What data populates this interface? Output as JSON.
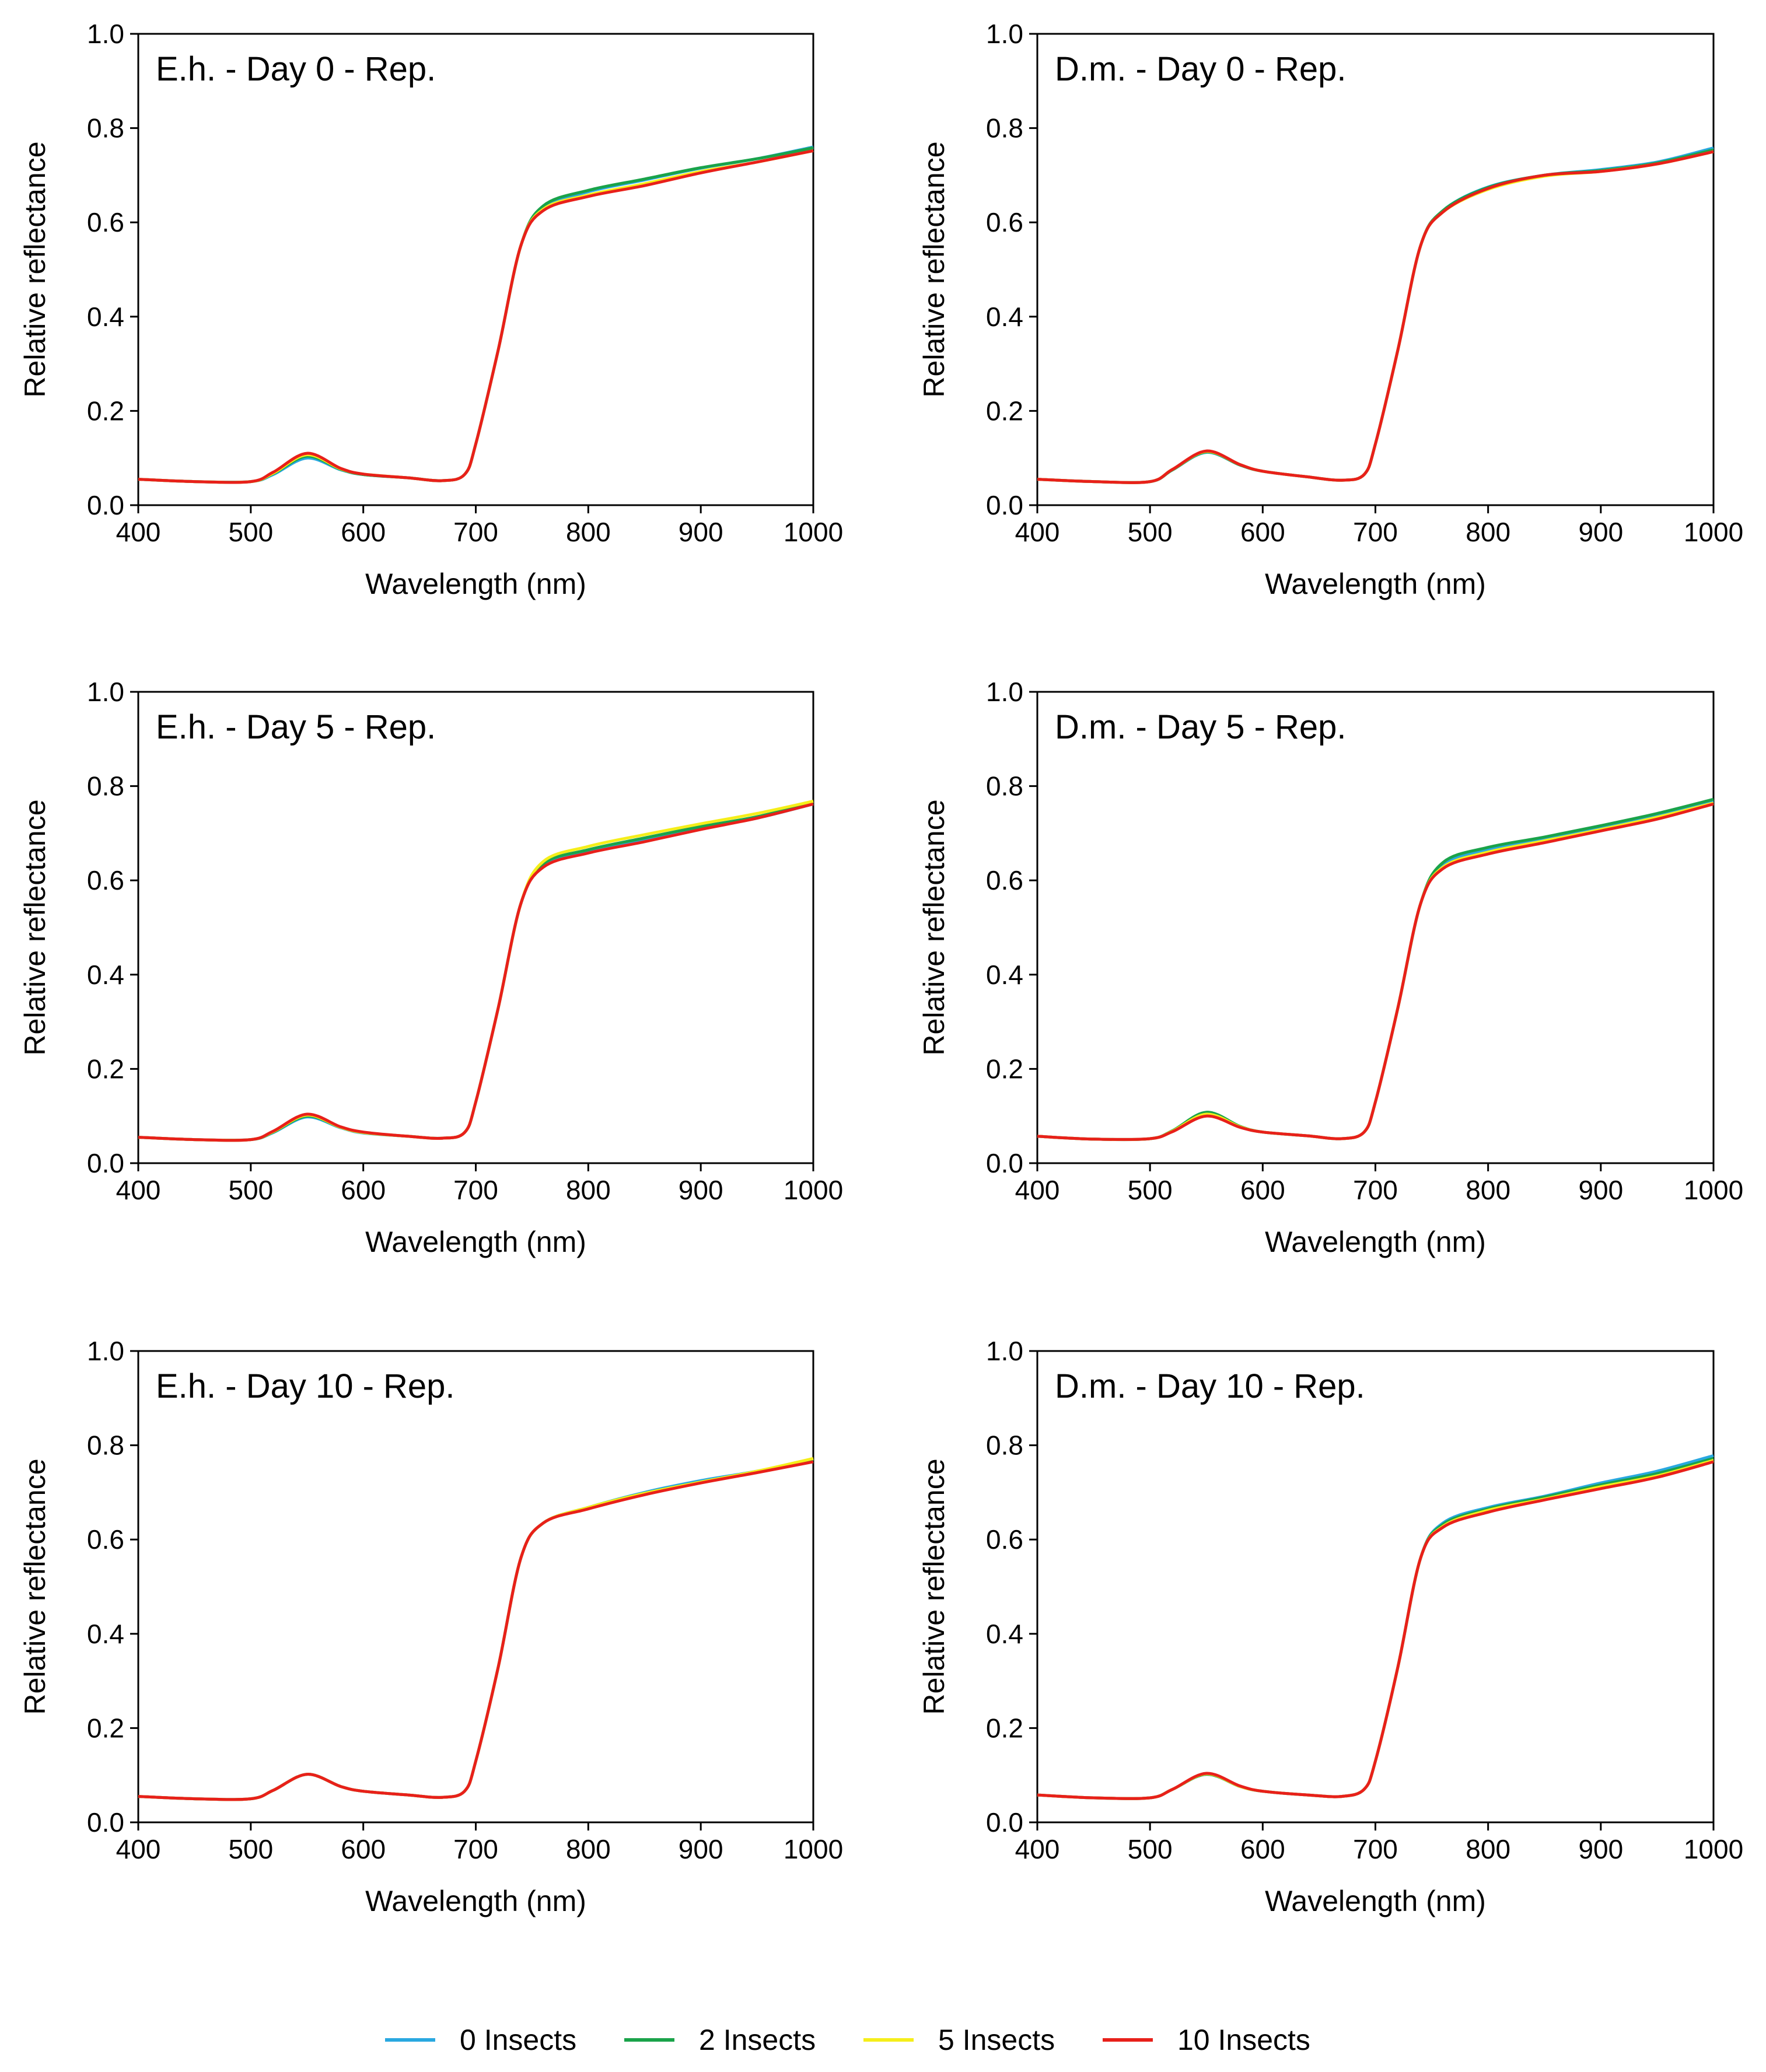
{
  "figure": {
    "legend": [
      {
        "label": "0 Insects",
        "color": "#29a8e0"
      },
      {
        "label": "2 Insects",
        "color": "#1aa34a"
      },
      {
        "label": "5 Insects",
        "color": "#f5ee1a"
      },
      {
        "label": "10 Insects",
        "color": "#e8201a"
      }
    ]
  },
  "chart_data": [
    {
      "type": "line",
      "title": "E.h. - Day 0 - Rep.",
      "xlabel": "Wavelength (nm)",
      "ylabel": "Relative reflectance",
      "xlim": [
        400,
        1000
      ],
      "ylim": [
        0,
        1.0
      ],
      "xticks": [
        "400",
        "500",
        "600",
        "700",
        "800",
        "900",
        "1000"
      ],
      "yticks": [
        "0.0",
        "0.2",
        "0.4",
        "0.6",
        "0.8",
        "1.0"
      ],
      "x": [
        400,
        450,
        500,
        520,
        550,
        580,
        600,
        640,
        670,
        690,
        700,
        720,
        740,
        760,
        800,
        850,
        900,
        950,
        1000
      ],
      "series": [
        {
          "name": "0 Insects",
          "color": "#29a8e0",
          "values": [
            0.055,
            0.05,
            0.05,
            0.065,
            0.1,
            0.075,
            0.065,
            0.058,
            0.052,
            0.065,
            0.13,
            0.33,
            0.55,
            0.63,
            0.665,
            0.69,
            0.715,
            0.735,
            0.76
          ]
        },
        {
          "name": "2 Insects",
          "color": "#1aa34a",
          "values": [
            0.055,
            0.05,
            0.05,
            0.067,
            0.104,
            0.076,
            0.065,
            0.058,
            0.052,
            0.065,
            0.13,
            0.33,
            0.55,
            0.635,
            0.668,
            0.692,
            0.716,
            0.735,
            0.758
          ]
        },
        {
          "name": "5 Insects",
          "color": "#f5ee1a",
          "values": [
            0.055,
            0.05,
            0.05,
            0.068,
            0.107,
            0.077,
            0.066,
            0.058,
            0.052,
            0.065,
            0.13,
            0.33,
            0.55,
            0.628,
            0.658,
            0.682,
            0.708,
            0.728,
            0.752
          ]
        },
        {
          "name": "10 Insects",
          "color": "#e8201a",
          "values": [
            0.055,
            0.05,
            0.05,
            0.07,
            0.11,
            0.078,
            0.066,
            0.058,
            0.052,
            0.065,
            0.13,
            0.33,
            0.55,
            0.625,
            0.655,
            0.678,
            0.705,
            0.728,
            0.752
          ]
        }
      ]
    },
    {
      "type": "line",
      "title": "D.m. - Day 0 - Rep.",
      "xlabel": "Wavelength (nm)",
      "ylabel": "Relative reflectance",
      "xlim": [
        400,
        1000
      ],
      "ylim": [
        0,
        1.0
      ],
      "xticks": [
        "400",
        "500",
        "600",
        "700",
        "800",
        "900",
        "1000"
      ],
      "yticks": [
        "0.0",
        "0.2",
        "0.4",
        "0.6",
        "0.8",
        "1.0"
      ],
      "x": [
        400,
        450,
        500,
        520,
        550,
        580,
        600,
        640,
        670,
        690,
        700,
        720,
        740,
        760,
        800,
        850,
        900,
        950,
        1000
      ],
      "series": [
        {
          "name": "0 Insects",
          "color": "#29a8e0",
          "values": [
            0.055,
            0.05,
            0.05,
            0.075,
            0.112,
            0.085,
            0.072,
            0.06,
            0.053,
            0.065,
            0.13,
            0.33,
            0.55,
            0.625,
            0.675,
            0.7,
            0.712,
            0.728,
            0.758
          ]
        },
        {
          "name": "2 Insects",
          "color": "#1aa34a",
          "values": [
            0.055,
            0.05,
            0.05,
            0.075,
            0.113,
            0.085,
            0.072,
            0.06,
            0.053,
            0.065,
            0.13,
            0.33,
            0.55,
            0.625,
            0.674,
            0.7,
            0.71,
            0.726,
            0.754
          ]
        },
        {
          "name": "5 Insects",
          "color": "#f5ee1a",
          "values": [
            0.055,
            0.05,
            0.05,
            0.076,
            0.114,
            0.086,
            0.072,
            0.06,
            0.053,
            0.065,
            0.13,
            0.33,
            0.55,
            0.622,
            0.67,
            0.698,
            0.708,
            0.724,
            0.75
          ]
        },
        {
          "name": "10 Insects",
          "color": "#e8201a",
          "values": [
            0.055,
            0.05,
            0.05,
            0.076,
            0.115,
            0.086,
            0.072,
            0.06,
            0.053,
            0.065,
            0.13,
            0.33,
            0.55,
            0.622,
            0.672,
            0.7,
            0.708,
            0.724,
            0.75
          ]
        }
      ]
    },
    {
      "type": "line",
      "title": "E.h. - Day 5 - Rep.",
      "xlabel": "Wavelength (nm)",
      "ylabel": "Relative reflectance",
      "xlim": [
        400,
        1000
      ],
      "ylim": [
        0,
        1.0
      ],
      "xticks": [
        "400",
        "500",
        "600",
        "700",
        "800",
        "900",
        "1000"
      ],
      "yticks": [
        "0.0",
        "0.2",
        "0.4",
        "0.6",
        "0.8",
        "1.0"
      ],
      "x": [
        400,
        450,
        500,
        520,
        550,
        580,
        600,
        640,
        670,
        690,
        700,
        720,
        740,
        760,
        800,
        850,
        900,
        950,
        1000
      ],
      "series": [
        {
          "name": "0 Insects",
          "color": "#29a8e0",
          "values": [
            0.055,
            0.05,
            0.05,
            0.065,
            0.098,
            0.075,
            0.064,
            0.057,
            0.053,
            0.065,
            0.13,
            0.33,
            0.55,
            0.63,
            0.66,
            0.685,
            0.71,
            0.732,
            0.762
          ]
        },
        {
          "name": "2 Insects",
          "color": "#1aa34a",
          "values": [
            0.055,
            0.05,
            0.05,
            0.066,
            0.1,
            0.076,
            0.065,
            0.057,
            0.053,
            0.065,
            0.13,
            0.33,
            0.55,
            0.635,
            0.665,
            0.69,
            0.714,
            0.735,
            0.765
          ]
        },
        {
          "name": "5 Insects",
          "color": "#f5ee1a",
          "values": [
            0.055,
            0.05,
            0.05,
            0.067,
            0.102,
            0.076,
            0.065,
            0.057,
            0.053,
            0.065,
            0.13,
            0.33,
            0.55,
            0.64,
            0.672,
            0.697,
            0.72,
            0.742,
            0.768
          ]
        },
        {
          "name": "10 Insects",
          "color": "#e8201a",
          "values": [
            0.055,
            0.05,
            0.05,
            0.068,
            0.104,
            0.077,
            0.066,
            0.057,
            0.053,
            0.065,
            0.13,
            0.33,
            0.55,
            0.628,
            0.658,
            0.682,
            0.708,
            0.732,
            0.762
          ]
        }
      ]
    },
    {
      "type": "line",
      "title": "D.m. - Day 5 - Rep.",
      "xlabel": "Wavelength (nm)",
      "ylabel": "Relative reflectance",
      "xlim": [
        400,
        1000
      ],
      "ylim": [
        0,
        1.0
      ],
      "xticks": [
        "400",
        "500",
        "600",
        "700",
        "800",
        "900",
        "1000"
      ],
      "yticks": [
        "0.0",
        "0.2",
        "0.4",
        "0.6",
        "0.8",
        "1.0"
      ],
      "x": [
        400,
        450,
        500,
        520,
        550,
        580,
        600,
        640,
        670,
        690,
        700,
        720,
        740,
        760,
        800,
        850,
        900,
        950,
        1000
      ],
      "series": [
        {
          "name": "0 Insects",
          "color": "#29a8e0",
          "values": [
            0.057,
            0.051,
            0.052,
            0.068,
            0.105,
            0.077,
            0.066,
            0.058,
            0.052,
            0.066,
            0.13,
            0.33,
            0.55,
            0.632,
            0.665,
            0.688,
            0.712,
            0.738,
            0.768
          ]
        },
        {
          "name": "2 Insects",
          "color": "#1aa34a",
          "values": [
            0.057,
            0.051,
            0.052,
            0.069,
            0.108,
            0.078,
            0.066,
            0.058,
            0.052,
            0.066,
            0.13,
            0.33,
            0.55,
            0.638,
            0.67,
            0.692,
            0.716,
            0.742,
            0.772
          ]
        },
        {
          "name": "5 Insects",
          "color": "#f5ee1a",
          "values": [
            0.057,
            0.051,
            0.052,
            0.068,
            0.104,
            0.077,
            0.066,
            0.058,
            0.052,
            0.066,
            0.13,
            0.33,
            0.55,
            0.628,
            0.66,
            0.684,
            0.708,
            0.734,
            0.764
          ]
        },
        {
          "name": "10 Insects",
          "color": "#e8201a",
          "values": [
            0.057,
            0.051,
            0.052,
            0.067,
            0.1,
            0.076,
            0.066,
            0.058,
            0.052,
            0.066,
            0.13,
            0.33,
            0.55,
            0.625,
            0.656,
            0.68,
            0.705,
            0.73,
            0.762
          ]
        }
      ]
    },
    {
      "type": "line",
      "title": "E.h. - Day 10 - Rep.",
      "xlabel": "Wavelength (nm)",
      "ylabel": "Relative reflectance",
      "xlim": [
        400,
        1000
      ],
      "ylim": [
        0,
        1.0
      ],
      "xticks": [
        "400",
        "500",
        "600",
        "700",
        "800",
        "900",
        "1000"
      ],
      "yticks": [
        "0.0",
        "0.2",
        "0.4",
        "0.6",
        "0.8",
        "1.0"
      ],
      "x": [
        400,
        450,
        500,
        520,
        550,
        580,
        600,
        640,
        670,
        690,
        700,
        720,
        740,
        760,
        800,
        850,
        900,
        950,
        1000
      ],
      "series": [
        {
          "name": "0 Insects",
          "color": "#29a8e0",
          "values": [
            0.055,
            0.05,
            0.05,
            0.068,
            0.102,
            0.076,
            0.066,
            0.058,
            0.053,
            0.066,
            0.13,
            0.33,
            0.56,
            0.635,
            0.668,
            0.7,
            0.725,
            0.745,
            0.77
          ]
        },
        {
          "name": "2 Insects",
          "color": "#1aa34a",
          "values": [
            0.055,
            0.05,
            0.05,
            0.068,
            0.102,
            0.076,
            0.066,
            0.058,
            0.053,
            0.066,
            0.13,
            0.33,
            0.56,
            0.635,
            0.668,
            0.698,
            0.722,
            0.743,
            0.77
          ]
        },
        {
          "name": "5 Insects",
          "color": "#f5ee1a",
          "values": [
            0.055,
            0.05,
            0.05,
            0.068,
            0.102,
            0.076,
            0.066,
            0.058,
            0.053,
            0.066,
            0.13,
            0.33,
            0.56,
            0.635,
            0.668,
            0.698,
            0.722,
            0.745,
            0.772
          ]
        },
        {
          "name": "10 Insects",
          "color": "#e8201a",
          "values": [
            0.055,
            0.05,
            0.05,
            0.068,
            0.102,
            0.076,
            0.066,
            0.058,
            0.053,
            0.066,
            0.13,
            0.33,
            0.56,
            0.635,
            0.665,
            0.695,
            0.72,
            0.742,
            0.765
          ]
        }
      ]
    },
    {
      "type": "line",
      "title": "D.m. - Day 10 - Rep.",
      "xlabel": "Wavelength (nm)",
      "ylabel": "Relative reflectance",
      "xlim": [
        400,
        1000
      ],
      "ylim": [
        0,
        1.0
      ],
      "xticks": [
        "400",
        "500",
        "600",
        "700",
        "800",
        "900",
        "1000"
      ],
      "yticks": [
        "0.0",
        "0.2",
        "0.4",
        "0.6",
        "0.8",
        "1.0"
      ],
      "x": [
        400,
        450,
        500,
        520,
        550,
        580,
        600,
        640,
        670,
        690,
        700,
        720,
        740,
        760,
        800,
        850,
        900,
        950,
        1000
      ],
      "series": [
        {
          "name": "0 Insects",
          "color": "#29a8e0",
          "values": [
            0.058,
            0.052,
            0.052,
            0.07,
            0.102,
            0.076,
            0.066,
            0.058,
            0.055,
            0.07,
            0.13,
            0.33,
            0.56,
            0.635,
            0.668,
            0.692,
            0.72,
            0.745,
            0.778
          ]
        },
        {
          "name": "2 Insects",
          "color": "#1aa34a",
          "values": [
            0.058,
            0.052,
            0.052,
            0.07,
            0.102,
            0.076,
            0.066,
            0.058,
            0.055,
            0.07,
            0.13,
            0.33,
            0.56,
            0.632,
            0.665,
            0.69,
            0.716,
            0.74,
            0.772
          ]
        },
        {
          "name": "5 Insects",
          "color": "#f5ee1a",
          "values": [
            0.058,
            0.052,
            0.052,
            0.07,
            0.103,
            0.076,
            0.066,
            0.058,
            0.055,
            0.07,
            0.13,
            0.33,
            0.56,
            0.628,
            0.662,
            0.686,
            0.712,
            0.735,
            0.768
          ]
        },
        {
          "name": "10 Insects",
          "color": "#e8201a",
          "values": [
            0.058,
            0.052,
            0.052,
            0.07,
            0.104,
            0.077,
            0.066,
            0.058,
            0.055,
            0.07,
            0.13,
            0.33,
            0.56,
            0.626,
            0.658,
            0.684,
            0.708,
            0.732,
            0.765
          ]
        }
      ]
    }
  ]
}
